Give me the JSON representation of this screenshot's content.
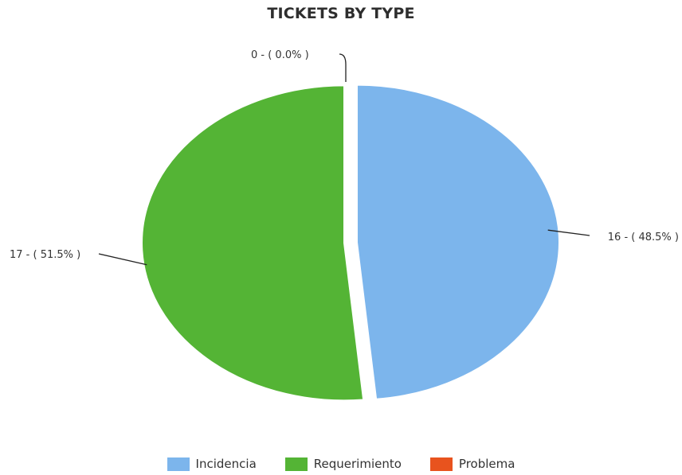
{
  "chart_data": {
    "type": "pie",
    "title": "TICKETS BY TYPE",
    "slices": [
      {
        "name": "Incidencia",
        "value": 16,
        "label": "16 - ( 48.5% )",
        "color": "#7cb5ec"
      },
      {
        "name": "Requerimiento",
        "value": 17,
        "label": "17 - ( 51.5% )",
        "color": "#54b435"
      },
      {
        "name": "Problema",
        "value": 0,
        "label": "0 - ( 0.0% )",
        "color": "#e8531e"
      }
    ],
    "legend_position": "bottom"
  }
}
